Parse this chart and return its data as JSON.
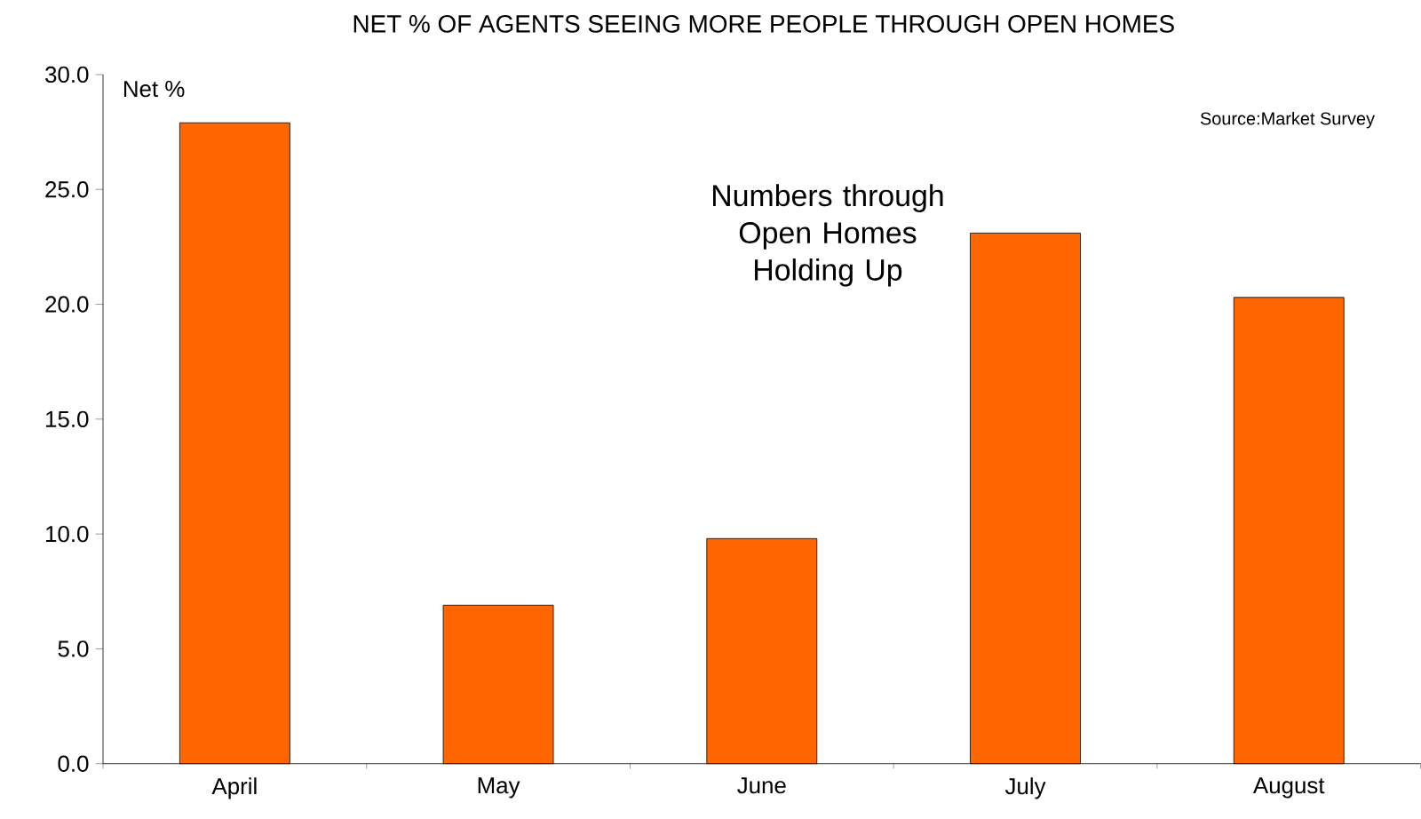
{
  "chart_data": {
    "type": "bar",
    "title": "NET % OF AGENTS SEEING MORE PEOPLE THROUGH OPEN HOMES",
    "ylabel": "Net %",
    "categories": [
      "April",
      "May",
      "June",
      "July",
      "August"
    ],
    "values": [
      27.9,
      6.9,
      9.8,
      23.1,
      20.3
    ],
    "color": "#ff6600",
    "ylim": [
      0,
      30
    ],
    "yticks": [
      {
        "value": 0,
        "label": "0.0"
      },
      {
        "value": 5,
        "label": "5.0"
      },
      {
        "value": 10,
        "label": "10.0"
      },
      {
        "value": 15,
        "label": "15.0"
      },
      {
        "value": 20,
        "label": "20.0"
      },
      {
        "value": 25,
        "label": "25.0"
      },
      {
        "value": 30,
        "label": "30.0"
      }
    ],
    "grid": false,
    "annotations": [
      "Source:Market Survey",
      "Numbers through Open Homes Holding Up"
    ]
  }
}
